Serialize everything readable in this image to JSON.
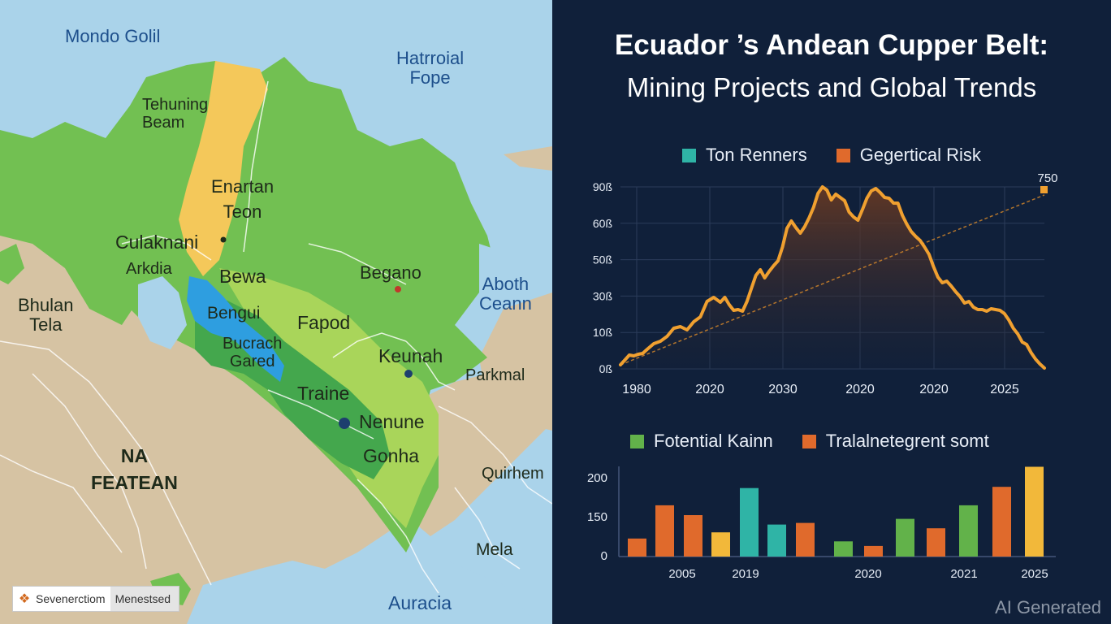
{
  "map": {
    "labels": {
      "mondo_golil": "Mondo Golil",
      "hatrroial_fope": "Hatrroial\nFope",
      "tehuning_beam": "Tehuning\nBeam",
      "enartan_teon": "Enartan\nTeon",
      "culaknani": "Culaknani",
      "arkdia": "Arkdia",
      "bewa": "Bewa",
      "begano": "Begano",
      "aboth_ceann": "Aboth\nCeann",
      "bhulan_tela": "Bhulan\nTela",
      "bengui": "Bengui",
      "fapod": "Fapod",
      "bucrach_gared": "Bucrach\nGared",
      "keunah": "Keunah",
      "parkmal": "Parkmal",
      "traine": "Traine",
      "nenune": "Nenune",
      "na_featean": "NA\nFEATEAN",
      "gonha": "Gonha",
      "quirhem": "Quirhem",
      "mela": "Mela",
      "auracia": "Auracia"
    },
    "credit_left": "Sevenerctiom",
    "credit_right": "Menestsed"
  },
  "title_line1": "Ecuador ’s Andean Cupper Belt:",
  "title_line2": "Mining Projects and Global Trends",
  "watermark": "AI Generated",
  "colors": {
    "teal": "#2fb4a6",
    "orange": "#e06a2c",
    "line": "#f0a030",
    "green": "#62b24a",
    "yellow": "#f2b83a"
  },
  "chart_data": [
    {
      "type": "line",
      "legend": [
        "Ton Renners",
        "Gegertical Risk"
      ],
      "y_tick_labels": [
        "90ß",
        "60ß",
        "50ß",
        "30ß",
        "10ß",
        "0ß"
      ],
      "x_tick_labels": [
        "1980",
        "2020",
        "2030",
        "2020",
        "2020",
        "2025"
      ],
      "end_label": "750",
      "series": [
        {
          "points": [
            [
              0,
              5
            ],
            [
              2,
              11
            ],
            [
              4,
              17
            ],
            [
              6,
              16
            ],
            [
              8,
              18
            ],
            [
              10,
              19
            ],
            [
              12,
              24
            ],
            [
              15,
              31
            ],
            [
              18,
              34
            ],
            [
              21,
              40
            ],
            [
              24,
              50
            ],
            [
              27,
              52
            ],
            [
              30,
              48
            ],
            [
              33,
              58
            ],
            [
              36,
              64
            ],
            [
              39,
              83
            ],
            [
              42,
              88
            ],
            [
              45,
              82
            ],
            [
              47,
              88
            ],
            [
              49,
              79
            ],
            [
              51,
              72
            ],
            [
              53,
              73
            ],
            [
              55,
              71
            ],
            [
              57,
              83
            ],
            [
              59,
              99
            ],
            [
              61,
              115
            ],
            [
              63,
              122
            ],
            [
              65,
              112
            ],
            [
              67,
              120
            ],
            [
              69,
              127
            ],
            [
              71,
              133
            ],
            [
              73,
              150
            ],
            [
              75,
              173
            ],
            [
              77,
              182
            ],
            [
              79,
              174
            ],
            [
              81,
              167
            ],
            [
              83,
              175
            ],
            [
              85,
              186
            ],
            [
              87,
              199
            ],
            [
              89,
              216
            ],
            [
              91,
              224
            ],
            [
              93,
              220
            ],
            [
              95,
              208
            ],
            [
              97,
              215
            ],
            [
              99,
              211
            ],
            [
              101,
              207
            ],
            [
              103,
              193
            ],
            [
              105,
              187
            ],
            [
              107,
              183
            ],
            [
              109,
              196
            ],
            [
              111,
              210
            ],
            [
              113,
              219
            ],
            [
              115,
              222
            ],
            [
              117,
              217
            ],
            [
              119,
              211
            ],
            [
              121,
              210
            ],
            [
              123,
              204
            ],
            [
              125,
              204
            ],
            [
              127,
              189
            ],
            [
              129,
              178
            ],
            [
              131,
              169
            ],
            [
              133,
              163
            ],
            [
              135,
              158
            ],
            [
              137,
              150
            ],
            [
              139,
              141
            ],
            [
              141,
              126
            ],
            [
              143,
              113
            ],
            [
              145,
              106
            ],
            [
              147,
              108
            ],
            [
              149,
              102
            ],
            [
              151,
              95
            ],
            [
              153,
              89
            ],
            [
              155,
              81
            ],
            [
              157,
              83
            ],
            [
              159,
              76
            ],
            [
              161,
              73
            ],
            [
              163,
              73
            ],
            [
              165,
              71
            ],
            [
              167,
              74
            ],
            [
              169,
              73
            ],
            [
              171,
              72
            ],
            [
              173,
              68
            ],
            [
              175,
              60
            ],
            [
              177,
              50
            ],
            [
              179,
              43
            ],
            [
              181,
              33
            ],
            [
              183,
              30
            ],
            [
              185,
              20
            ],
            [
              187,
              12
            ],
            [
              189,
              6
            ],
            [
              191,
              1
            ]
          ]
        }
      ]
    },
    {
      "type": "bar",
      "legend": [
        "Fotential Kainn",
        "Tralalnetegrent somt"
      ],
      "y_tick_labels": [
        "200",
        "150",
        "0"
      ],
      "x_tick_labels": [
        "2005",
        "2019",
        "2020",
        "2021",
        "2025"
      ],
      "ylim": [
        0,
        220
      ],
      "bars": [
        {
          "value": 44,
          "color": "orange"
        },
        {
          "value": 125,
          "color": "orange"
        },
        {
          "value": 101,
          "color": "orange"
        },
        {
          "value": 59,
          "color": "yellow"
        },
        {
          "value": 167,
          "color": "teal"
        },
        {
          "value": 78,
          "color": "teal"
        },
        {
          "value": 82,
          "color": "orange"
        },
        {
          "value": 37,
          "color": "green"
        },
        {
          "value": 26,
          "color": "orange"
        },
        {
          "value": 92,
          "color": "green"
        },
        {
          "value": 69,
          "color": "orange"
        },
        {
          "value": 125,
          "color": "green"
        },
        {
          "value": 170,
          "color": "orange"
        },
        {
          "value": 219,
          "color": "yellow"
        }
      ]
    }
  ]
}
